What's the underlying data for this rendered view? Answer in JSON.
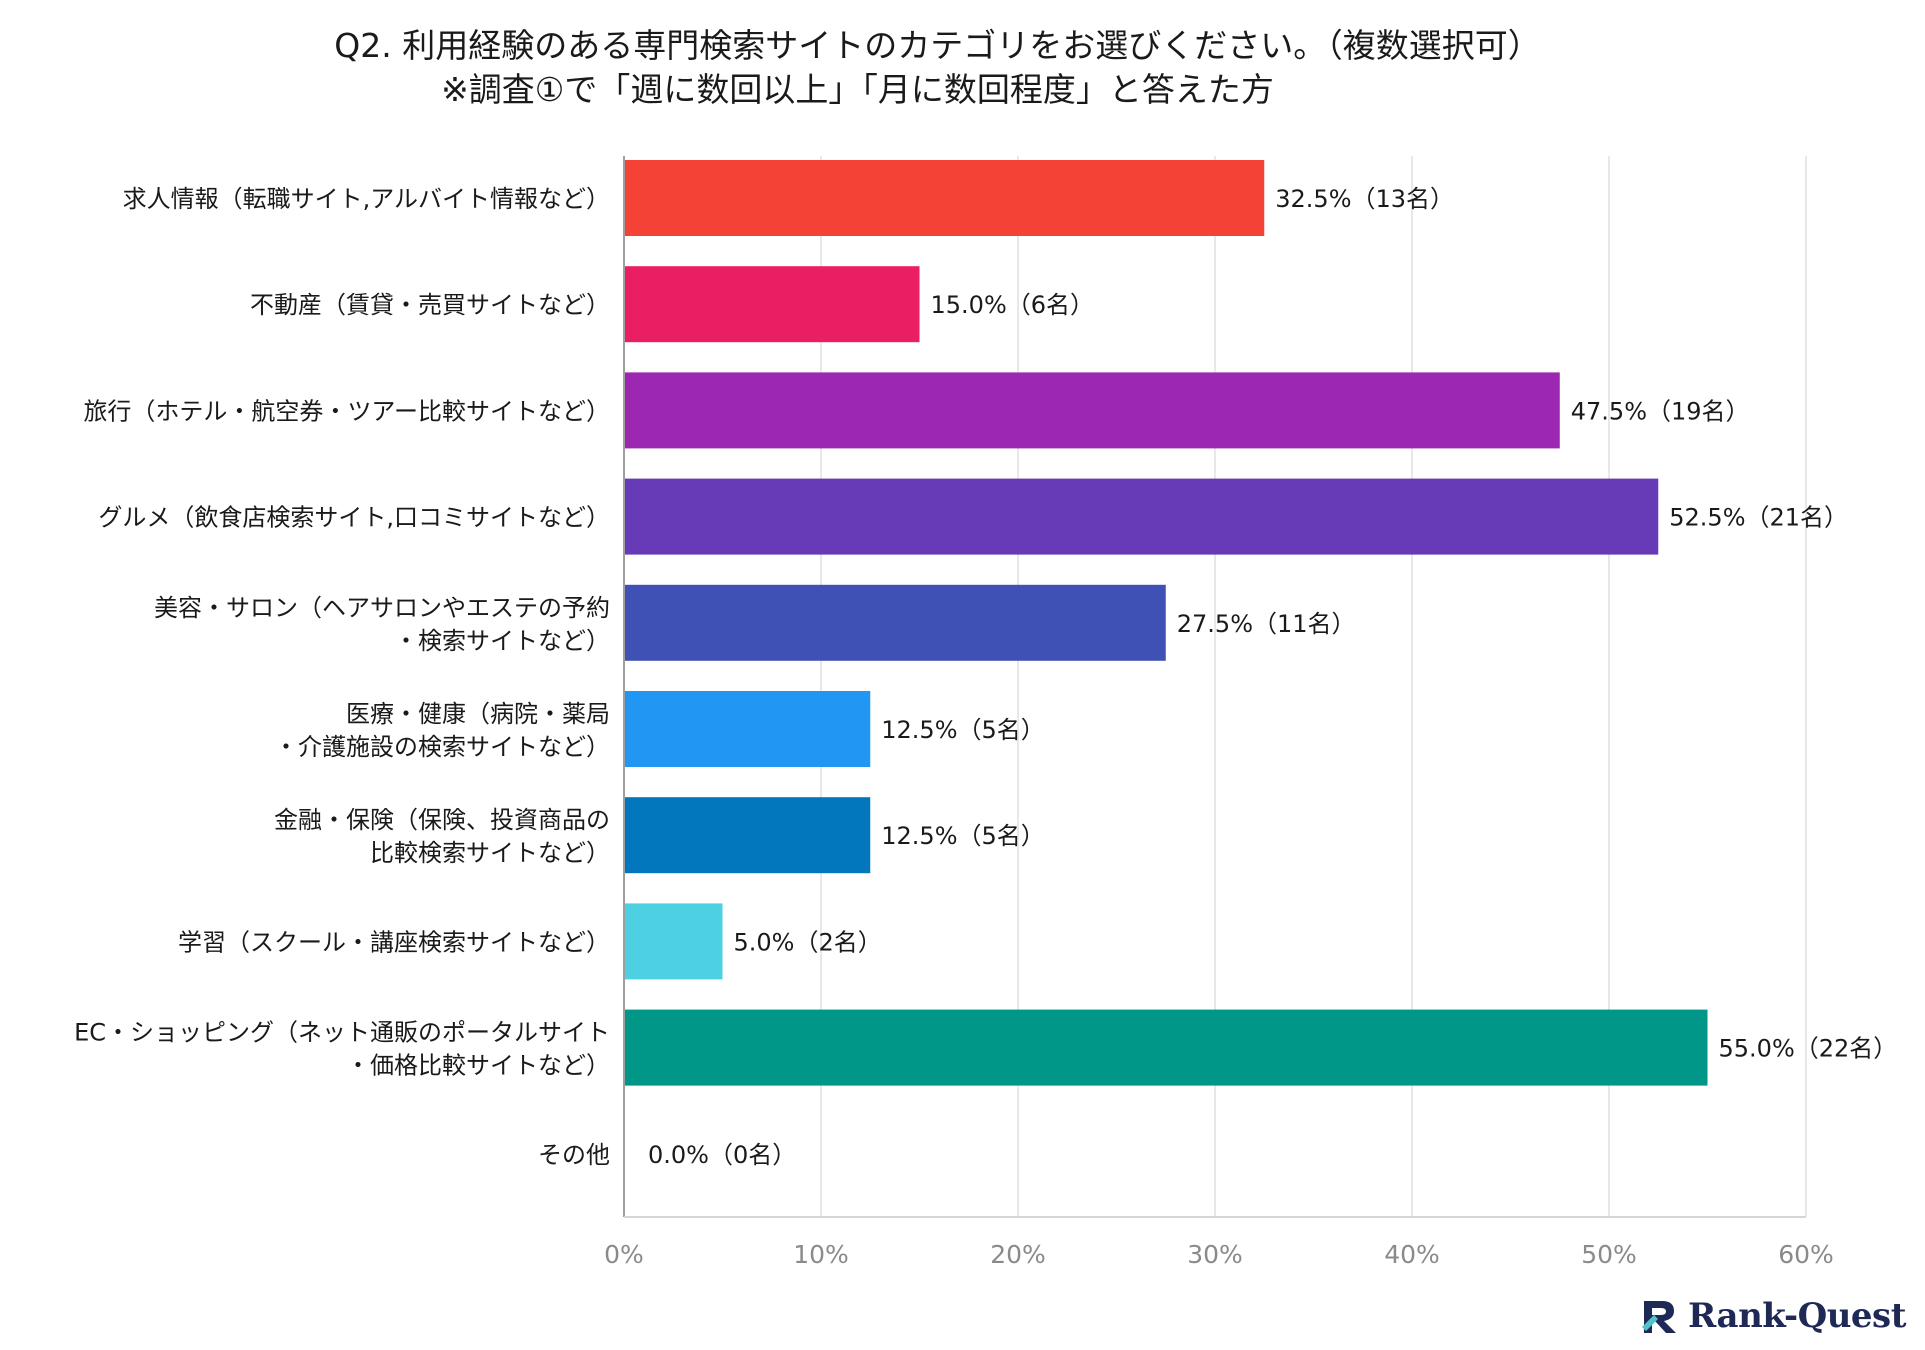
{
  "title": {
    "line1": "Q2. 利用経験のある専門検索サイトのカテゴリをお選びください。（複数選択可）",
    "line2": "※調査①で「週に数回以上」「月に数回程度」と答えた方"
  },
  "brand": {
    "name": "Rank-Quest",
    "icon": "rank-quest-logo-icon"
  },
  "chart_data": {
    "type": "bar",
    "orientation": "horizontal",
    "title": "Q2. 利用経験のある専門検索サイトのカテゴリをお選びください。（複数選択可）",
    "subtitle": "※調査①で「週に数回以上」「月に数回程度」と答えた方",
    "xlabel": "",
    "ylabel": "",
    "xlim": [
      0,
      60
    ],
    "xticks": [
      0,
      10,
      20,
      30,
      40,
      50,
      60
    ],
    "xtick_labels": [
      "0%",
      "10%",
      "20%",
      "30%",
      "40%",
      "50%",
      "60%"
    ],
    "grid": true,
    "legend": "none",
    "categories": [
      [
        "求人情報（転職サイト,アルバイト情報など）"
      ],
      [
        "不動産（賃貸・売買サイトなど）"
      ],
      [
        "旅行（ホテル・航空券・ツアー比較サイトなど）"
      ],
      [
        "グルメ（飲食店検索サイト,口コミサイトなど）"
      ],
      [
        "美容・サロン（ヘアサロンやエステの予約",
        "・検索サイトなど）"
      ],
      [
        "医療・健康（病院・薬局",
        "・介護施設の検索サイトなど）"
      ],
      [
        "金融・保険（保険、投資商品の",
        "比較検索サイトなど）"
      ],
      [
        "学習（スクール・講座検索サイトなど）"
      ],
      [
        "EC・ショッピング（ネット通販のポータルサイト",
        "・価格比較サイトなど）"
      ],
      [
        "その他"
      ]
    ],
    "values": [
      32.5,
      15.0,
      47.5,
      52.5,
      27.5,
      12.5,
      12.5,
      5.0,
      55.0,
      0.0
    ],
    "counts": [
      13,
      6,
      19,
      21,
      11,
      5,
      5,
      2,
      22,
      0
    ],
    "data_labels": [
      "32.5%（13名）",
      "15.0%（6名）",
      "47.5%（19名）",
      "52.5%（21名）",
      "27.5%（11名）",
      "12.5%（5名）",
      "12.5%（5名）",
      "5.0%（2名）",
      "55.0%（22名）",
      "0.0%（0名）"
    ],
    "colors": [
      "#f44336",
      "#e91e63",
      "#9c27b0",
      "#673ab7",
      "#3f51b5",
      "#2196f3",
      "#0277bd",
      "#4dd0e1",
      "#009688",
      "#9e9e9e"
    ]
  }
}
